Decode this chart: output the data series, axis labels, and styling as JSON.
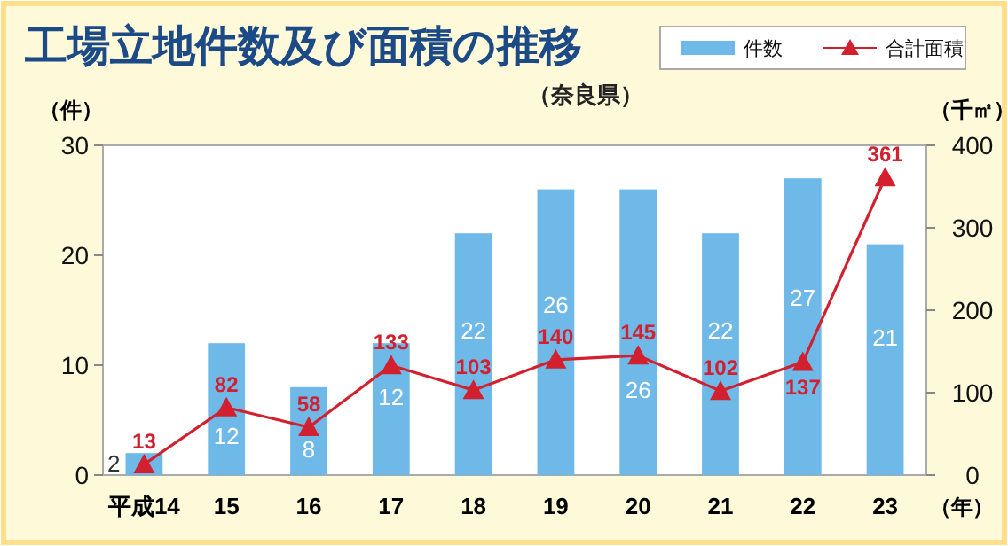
{
  "chart_data": {
    "type": "bar",
    "title": "工場立地件数及び面積の推移",
    "subtitle": "（奈良県）",
    "ylabel": "（件）",
    "y2label": "（千㎡）",
    "xlabel": "（年）",
    "categories": [
      "平成14",
      "15",
      "16",
      "17",
      "18",
      "19",
      "20",
      "21",
      "22",
      "23"
    ],
    "series": [
      {
        "name": "件数",
        "color": "#6eb9e8",
        "values": [
          2,
          12,
          8,
          12,
          22,
          26,
          26,
          22,
          27,
          21
        ]
      },
      {
        "name": "合計面積",
        "type": "line",
        "axis": "y2",
        "color": "#d2202e",
        "marker": "triangle",
        "values": [
          13,
          82,
          58,
          133,
          103,
          140,
          145,
          102,
          137,
          361
        ]
      }
    ],
    "ylim": [
      0,
      30
    ],
    "yticks": [
      0,
      10,
      20,
      30
    ],
    "y2lim": [
      0,
      400
    ],
    "y2ticks": [
      0,
      100,
      200,
      300,
      400
    ],
    "data_labels": true,
    "legend": "top right",
    "grid": false
  }
}
